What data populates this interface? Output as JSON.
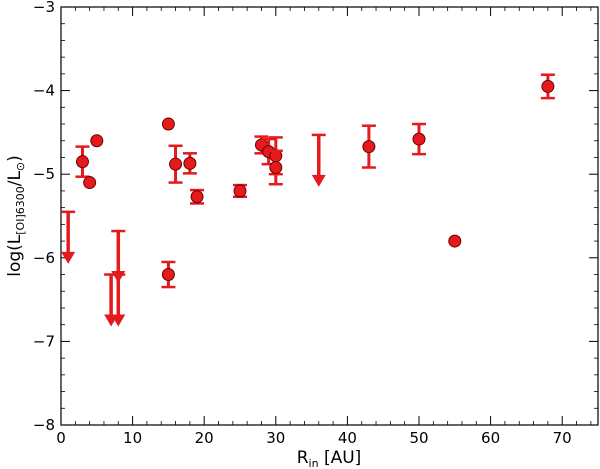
{
  "chart_data": {
    "type": "scatter",
    "title": "",
    "xlabel": {
      "main": "R",
      "sub": "in",
      "rest": " [AU]"
    },
    "ylabel": {
      "pre": "log(L",
      "sub1": "[OI]6300",
      "mid": "/L",
      "sub2": "⊙",
      "post": ")"
    },
    "xlim": [
      0,
      75
    ],
    "ylim": [
      -8,
      -3
    ],
    "xticks": [
      0,
      10,
      20,
      30,
      40,
      50,
      60,
      70
    ],
    "xtick_labels": [
      "0",
      "10",
      "20",
      "30",
      "40",
      "50",
      "60",
      "70"
    ],
    "yticks": [
      -8,
      -7,
      -6,
      -5,
      -4,
      -3
    ],
    "ytick_labels": [
      "−8",
      "−7",
      "−6",
      "−5",
      "−4",
      "−3"
    ],
    "grid": false,
    "marker_color": "#e41a1c",
    "marker_edge": "#6b0000",
    "points": [
      {
        "x": 3,
        "y": -4.85,
        "err": 0.18
      },
      {
        "x": 4,
        "y": -5.1,
        "err": 0
      },
      {
        "x": 5,
        "y": -4.6,
        "err": 0
      },
      {
        "x": 15,
        "y": -4.4,
        "err": 0
      },
      {
        "x": 15,
        "y": -6.2,
        "err": 0.15
      },
      {
        "x": 16,
        "y": -4.88,
        "err": 0.22
      },
      {
        "x": 18,
        "y": -4.87,
        "err": 0.12
      },
      {
        "x": 19,
        "y": -5.27,
        "err": 0.08
      },
      {
        "x": 25,
        "y": -5.2,
        "err": 0.07
      },
      {
        "x": 28,
        "y": -4.65,
        "err": 0.1
      },
      {
        "x": 29,
        "y": -4.73,
        "err": 0.15
      },
      {
        "x": 30,
        "y": -4.78,
        "err": 0.22
      },
      {
        "x": 30,
        "y": -4.92,
        "err": 0.2
      },
      {
        "x": 43,
        "y": -4.67,
        "err": 0.25
      },
      {
        "x": 50,
        "y": -4.58,
        "err": 0.18
      },
      {
        "x": 55,
        "y": -5.8,
        "err": 0
      },
      {
        "x": 68,
        "y": -3.95,
        "err": 0.14
      }
    ],
    "upper_limits": [
      {
        "x": 1,
        "y": -5.45
      },
      {
        "x": 7,
        "y": -6.2
      },
      {
        "x": 8,
        "y": -5.68
      },
      {
        "x": 8,
        "y": -6.2
      },
      {
        "x": 36,
        "y": -4.53
      }
    ]
  }
}
